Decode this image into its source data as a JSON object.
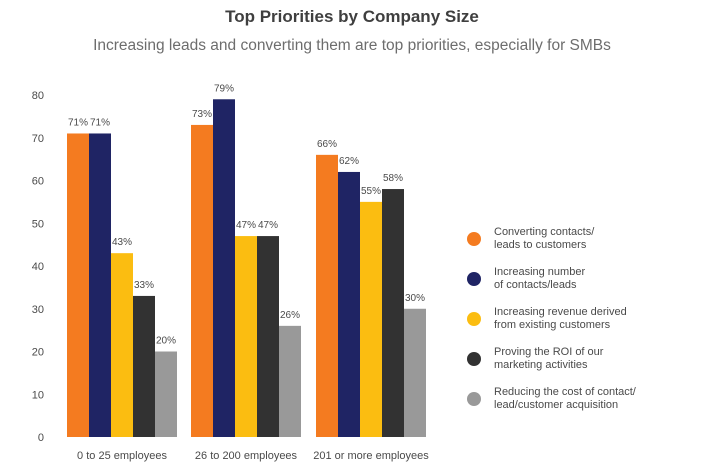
{
  "title": "Top Priorities by Company Size",
  "subtitle": "Increasing leads and converting them are top priorities, especially for SMBs",
  "chart_data": {
    "type": "bar",
    "categories": [
      "0 to 25 employees",
      "26 to 200 employees",
      "201 or more employees"
    ],
    "series": [
      {
        "name": "Converting contacts/\nleads to customers",
        "color": "#f47b20",
        "values": [
          71,
          73,
          66
        ],
        "labels": [
          "71%",
          "73%",
          "66%"
        ]
      },
      {
        "name": "Increasing number\nof contacts/leads",
        "color": "#1f2464",
        "values": [
          71,
          79,
          62
        ],
        "labels": [
          "71%",
          "79%",
          "62%"
        ]
      },
      {
        "name": "Increasing revenue derived\nfrom existing customers",
        "color": "#fbbd11",
        "values": [
          43,
          47,
          55
        ],
        "labels": [
          "43%",
          "47%",
          "55%"
        ]
      },
      {
        "name": "Proving the ROI of our\nmarketing activities",
        "color": "#323232",
        "values": [
          33,
          47,
          58
        ],
        "labels": [
          "33%",
          "47%",
          "58%"
        ]
      },
      {
        "name": "Reducing the cost of contact/\nlead/customer acquisition",
        "color": "#999999",
        "values": [
          20,
          26,
          30
        ],
        "labels": [
          "20%",
          "26%",
          "30%"
        ]
      }
    ],
    "yticks": [
      "0",
      "10",
      "20",
      "30",
      "40",
      "50",
      "60",
      "70",
      "80"
    ],
    "ylim": [
      0,
      80
    ],
    "grid": false,
    "legend_position": "right"
  }
}
